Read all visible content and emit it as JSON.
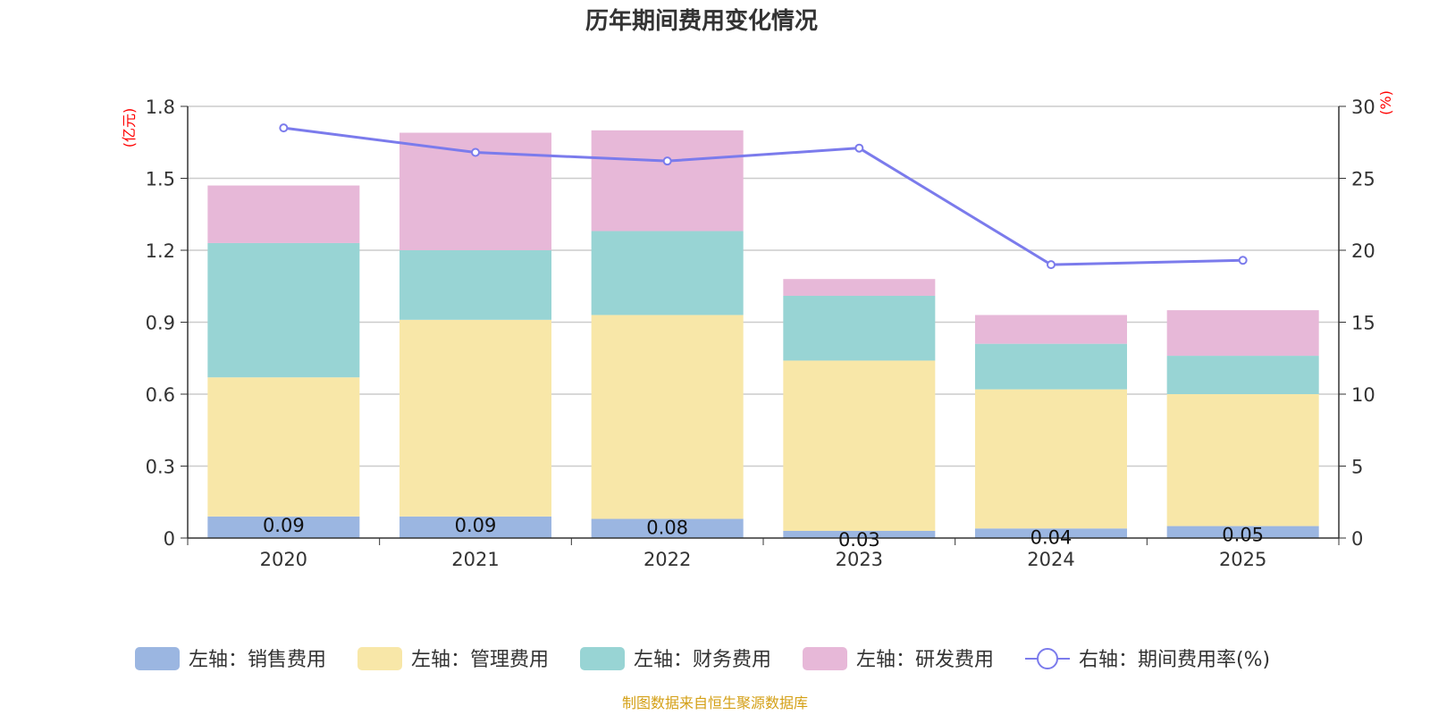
{
  "chart_data": {
    "type": "bar",
    "stacked": true,
    "title": "历年期间费用变化情况",
    "categories": [
      "2020",
      "2021",
      "2022",
      "2023",
      "2024",
      "2025"
    ],
    "y_left": {
      "unit_label": "(亿元)",
      "range": [
        0,
        1.8
      ],
      "ticks": [
        "0",
        "0.3",
        "0.6",
        "0.9",
        "1.2",
        "1.5",
        "1.8"
      ]
    },
    "y_right": {
      "unit_label": "(%)",
      "range": [
        0,
        30
      ],
      "ticks": [
        "0",
        "5",
        "10",
        "15",
        "20",
        "25",
        "30"
      ]
    },
    "grid": true,
    "series": [
      {
        "name": "左轴：销售费用",
        "axis": "left",
        "kind": "bar",
        "color": "#9bb6e1",
        "values": [
          0.09,
          0.09,
          0.08,
          0.03,
          0.04,
          0.05
        ],
        "labels": [
          "0.09",
          "0.09",
          "0.08",
          "0.03",
          "0.04",
          "0.05"
        ]
      },
      {
        "name": "左轴：管理费用",
        "axis": "left",
        "kind": "bar",
        "color": "#f8e7a8",
        "values": [
          0.58,
          0.82,
          0.85,
          0.71,
          0.58,
          0.55
        ]
      },
      {
        "name": "左轴：财务费用",
        "axis": "left",
        "kind": "bar",
        "color": "#98d4d4",
        "values": [
          0.56,
          0.29,
          0.35,
          0.27,
          0.19,
          0.16
        ]
      },
      {
        "name": "左轴：研发费用",
        "axis": "left",
        "kind": "bar",
        "color": "#e7b8d8",
        "values": [
          0.24,
          0.49,
          0.42,
          0.07,
          0.12,
          0.19
        ]
      },
      {
        "name": "右轴：期间费用率(%)",
        "axis": "right",
        "kind": "line",
        "color": "#7b7bec",
        "values": [
          28.5,
          26.8,
          26.2,
          27.1,
          19.0,
          19.3
        ]
      }
    ],
    "legend_position": "bottom"
  },
  "source_note": "制图数据来自恒生聚源数据库"
}
